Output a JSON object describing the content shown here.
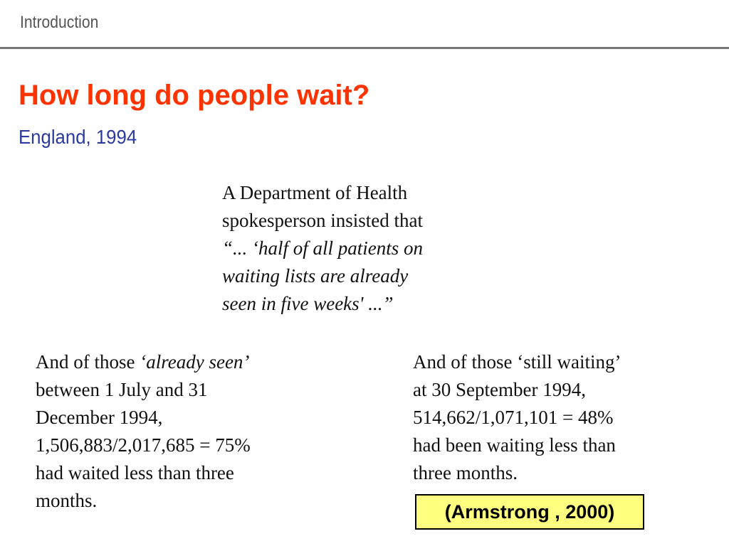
{
  "header": {
    "section_label": "Introduction"
  },
  "slide": {
    "title": "How long do people wait?",
    "subtitle": "England, 1994"
  },
  "quote": {
    "line1": "A Department of Health",
    "line2": "spokesperson insisted that",
    "line3": "“... ‘half of all patients on",
    "line4": "waiting lists are already",
    "line5": "seen in five weeks' ...”"
  },
  "left_column": {
    "line1_plain": "And of those ",
    "line1_italic": "‘already seen’",
    "line2": "between 1 July and 31",
    "line3": "December 1994,",
    "line4": "1,506,883/2,017,685 = 75%",
    "line5": "had waited less than three",
    "line6": "months."
  },
  "right_column": {
    "line1": "And of those ‘still waiting’",
    "line2": "at 30 September 1994,",
    "line3": "514,662/1,071,101 = 48%",
    "line4": "had been waiting less than",
    "line5": "three months."
  },
  "citation": {
    "text": "(Armstrong , 2000)",
    "background_color": "#ffff80"
  },
  "colors": {
    "title": "#ff3300",
    "subtitle": "#2b3aa0"
  }
}
